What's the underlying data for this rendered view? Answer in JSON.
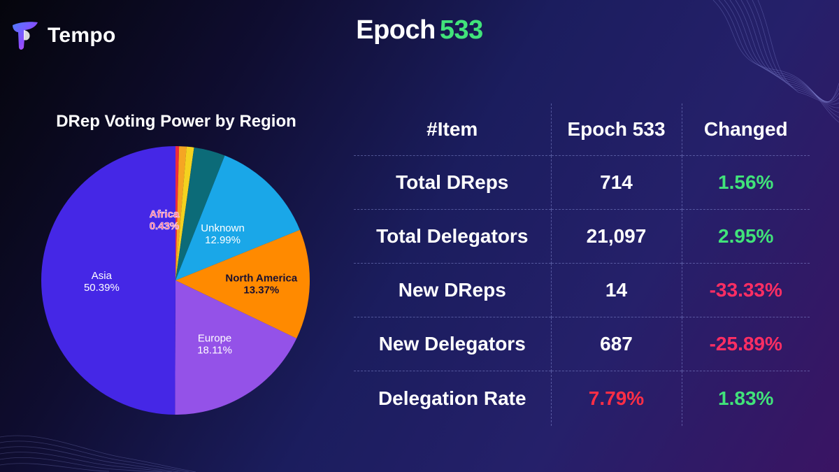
{
  "brand": {
    "name": "Tempo"
  },
  "header": {
    "title_prefix": "Epoch",
    "title_number": "533"
  },
  "chart_data": {
    "type": "pie",
    "title": "DRep Voting Power by Region",
    "slices": [
      {
        "name": "Africa",
        "value": 0.43,
        "label": "0.43%",
        "color": "#ef2b3c",
        "show_label": true
      },
      {
        "name": "",
        "value": 0.9,
        "color": "#f5a623",
        "show_label": false
      },
      {
        "name": "",
        "value": 0.9,
        "color": "#f4d21f",
        "show_label": false
      },
      {
        "name": "",
        "value": 3.81,
        "color": "#0c6b78",
        "show_label": false
      },
      {
        "name": "Unknown",
        "value": 12.99,
        "label": "12.99%",
        "color": "#1aa7e8",
        "show_label": true
      },
      {
        "name": "North America",
        "value": 13.37,
        "label": "13.37%",
        "color": "#ff8a00",
        "show_label": true
      },
      {
        "name": "Europe",
        "value": 18.11,
        "label": "18.11%",
        "color": "#9452e8",
        "show_label": true
      },
      {
        "name": "Asia",
        "value": 50.39,
        "label": "50.39%",
        "color": "#4527e6",
        "show_label": true
      }
    ]
  },
  "table": {
    "headers": [
      "#Item",
      "Epoch 533",
      "Changed"
    ],
    "rows": [
      {
        "item": "Total DReps",
        "value": "714",
        "changed": "1.56%"
      },
      {
        "item": "Total Delegators",
        "value": "21,097",
        "changed": "2.95%"
      },
      {
        "item": "New DReps",
        "value": "14",
        "changed": "-33.33%"
      },
      {
        "item": "New Delegators",
        "value": "687",
        "changed": "-25.89%"
      },
      {
        "item": "Delegation Rate",
        "value": "7.79%",
        "changed": "1.83%"
      }
    ]
  },
  "colors": {
    "positive": "#41e37a",
    "negative": "#ff2e63",
    "accent": "#41e37a"
  }
}
